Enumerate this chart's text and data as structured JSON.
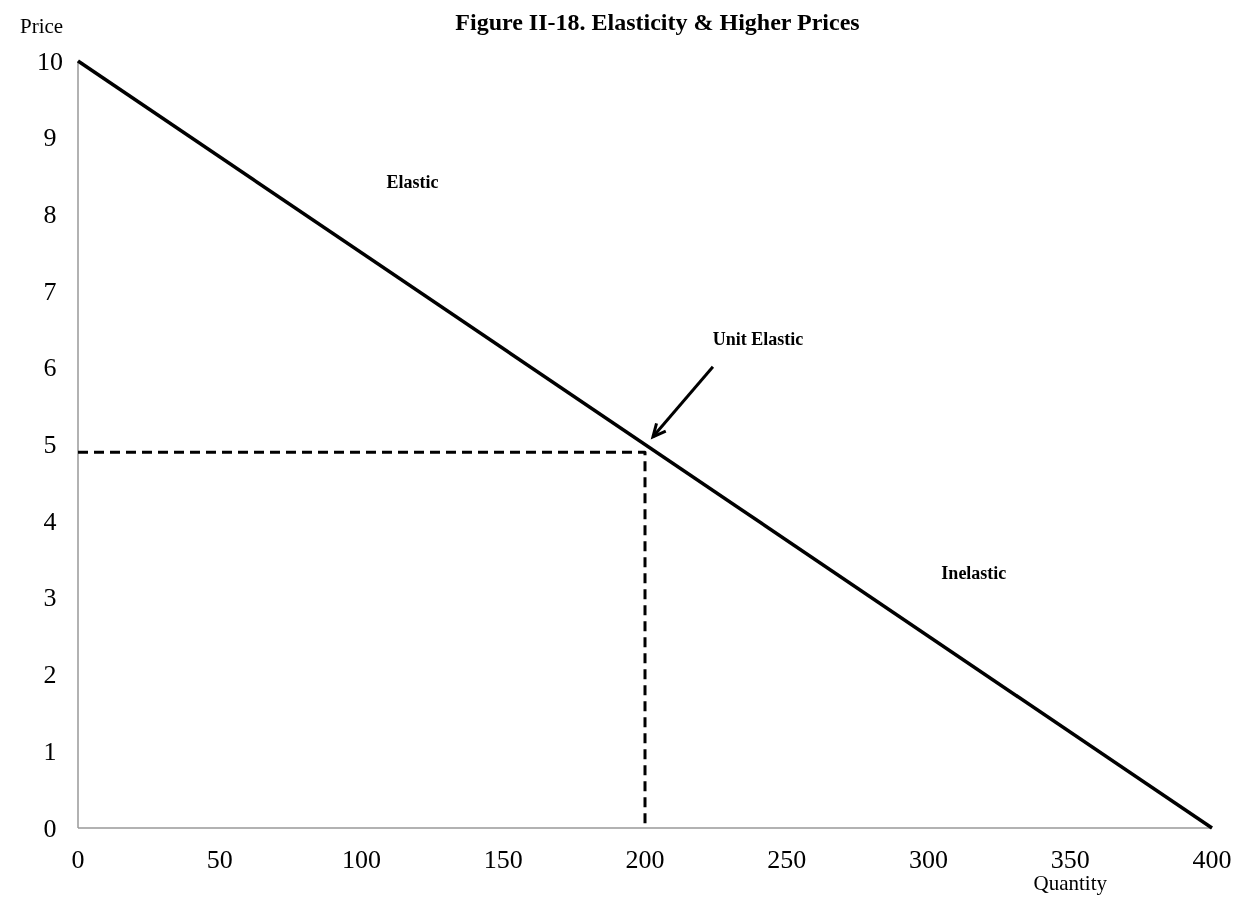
{
  "chart_data": {
    "type": "line",
    "title": "Figure II-18. Elasticity & Higher Prices",
    "xlabel": "Quantity",
    "ylabel": "Price",
    "xlim": [
      0,
      400
    ],
    "xticks": [
      0,
      50,
      100,
      150,
      200,
      250,
      300,
      350,
      400
    ],
    "ylim": [
      0,
      10
    ],
    "yticks": [
      0,
      1,
      2,
      3,
      4,
      5,
      6,
      7,
      8,
      9,
      10
    ],
    "series": [
      {
        "x": [
          0,
          400
        ],
        "values": [
          10,
          0
        ],
        "color": "#000000",
        "line_style": "solid"
      },
      {
        "x": [
          0,
          200,
          200
        ],
        "values": [
          4.9,
          4.9,
          0
        ],
        "color": "#000000",
        "line_style": "dashed"
      }
    ],
    "annotations": [
      "Elastic",
      "Unit Elastic",
      "Inelastic"
    ]
  }
}
